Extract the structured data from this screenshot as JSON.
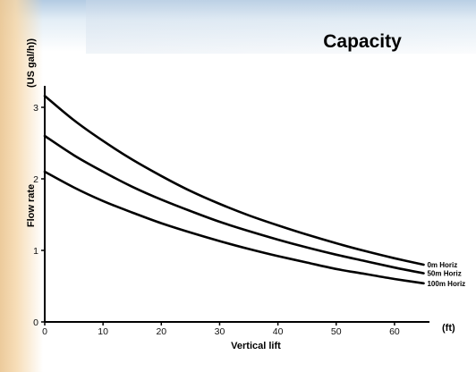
{
  "chart_data": {
    "type": "line",
    "title": "Capacity",
    "xlabel": "Vertical lift",
    "x_unit": "(ft)",
    "ylabel": "Flow rate",
    "y_unit": "(US gal/h))",
    "xlim": [
      0,
      66
    ],
    "ylim": [
      0,
      3.3
    ],
    "x_ticks": [
      0,
      10,
      20,
      30,
      40,
      50,
      60
    ],
    "y_ticks": [
      0,
      1,
      2,
      3
    ],
    "grid": false,
    "legend": "labels at right end of each curve",
    "x": [
      0,
      5,
      10,
      15,
      20,
      25,
      30,
      35,
      40,
      45,
      50,
      55,
      60,
      65
    ],
    "series": [
      {
        "name": "0m Horiz",
        "values": [
          3.16,
          2.82,
          2.53,
          2.27,
          2.04,
          1.83,
          1.65,
          1.49,
          1.35,
          1.22,
          1.1,
          0.99,
          0.89,
          0.8
        ]
      },
      {
        "name": "50m Horiz",
        "values": [
          2.6,
          2.33,
          2.1,
          1.89,
          1.71,
          1.55,
          1.4,
          1.27,
          1.15,
          1.04,
          0.94,
          0.85,
          0.76,
          0.68
        ]
      },
      {
        "name": "100m Horiz",
        "values": [
          2.1,
          1.88,
          1.69,
          1.53,
          1.38,
          1.25,
          1.13,
          1.02,
          0.92,
          0.83,
          0.74,
          0.67,
          0.6,
          0.54
        ]
      }
    ]
  }
}
